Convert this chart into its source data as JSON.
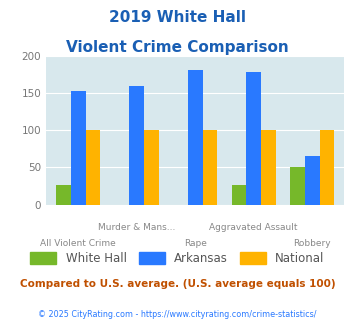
{
  "title_line1": "2019 White Hall",
  "title_line2": "Violent Crime Comparison",
  "categories": [
    "All Violent Crime",
    "Murder & Mans...",
    "Rape",
    "Aggravated Assault",
    "Robbery"
  ],
  "white_hall": [
    27,
    0,
    0,
    26,
    50
  ],
  "arkansas": [
    153,
    160,
    181,
    179,
    65
  ],
  "national": [
    100,
    100,
    100,
    100,
    100
  ],
  "colors": {
    "white_hall": "#76b82a",
    "arkansas": "#2979ff",
    "national": "#ffb300"
  },
  "ylim": [
    0,
    200
  ],
  "yticks": [
    0,
    50,
    100,
    150,
    200
  ],
  "title_color": "#1a5fb4",
  "bg_color": "#d8e8ed",
  "subtitle_text": "Compared to U.S. average. (U.S. average equals 100)",
  "footer_text": "© 2025 CityRating.com - https://www.cityrating.com/crime-statistics/",
  "subtitle_color": "#c05000",
  "footer_color": "#2979ff",
  "legend_labels": [
    "White Hall",
    "Arkansas",
    "National"
  ],
  "label_top": [
    "",
    "Murder & Mans...",
    "",
    "Aggravated Assault",
    ""
  ],
  "label_bot": [
    "All Violent Crime",
    "",
    "Rape",
    "",
    "Robbery"
  ]
}
